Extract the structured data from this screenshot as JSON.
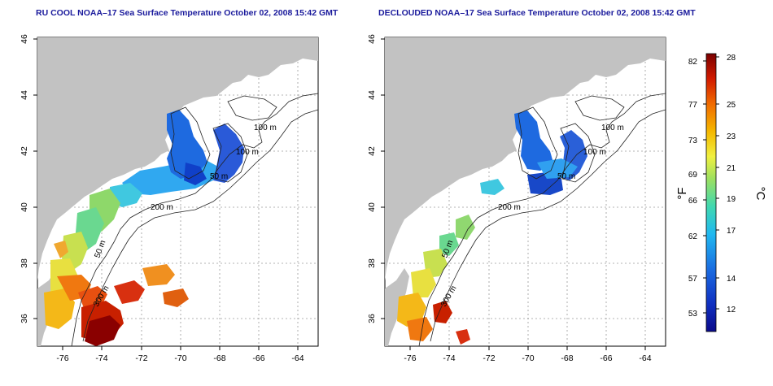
{
  "titles": {
    "left": "RU COOL NOAA–17 Sea Surface Temperature October 02, 2008 15:42 GMT",
    "right": "DECLOUDED NOAA–17 Sea Surface Temperature October 02, 2008 15:42 GMT"
  },
  "map": {
    "lon_ticks": [
      "-76",
      "-74",
      "-72",
      "-70",
      "-68",
      "-66",
      "-64"
    ],
    "lat_ticks": [
      "36",
      "38",
      "40",
      "42",
      "44",
      "46"
    ],
    "contour_labels": [
      "100 m",
      "100 m",
      "50 m",
      "200 m",
      "50 m",
      "300 m"
    ],
    "land_color": "#c2c2c2",
    "ocean_color": "#ffffff",
    "grid": "dotted"
  },
  "colorbar": {
    "f_ticks": [
      "82",
      "77",
      "73",
      "69",
      "66",
      "62",
      "57",
      "53"
    ],
    "c_ticks": [
      "28",
      "25",
      "23",
      "21",
      "19",
      "17",
      "14",
      "12"
    ],
    "f_label": "°F",
    "c_label": "°C",
    "colors": [
      "#7a0000",
      "#d11a00",
      "#f06a00",
      "#f5b800",
      "#f0f040",
      "#9de060",
      "#40d8b0",
      "#20b8f0",
      "#1a6ae0",
      "#1030c0",
      "#0a0a8a"
    ]
  }
}
